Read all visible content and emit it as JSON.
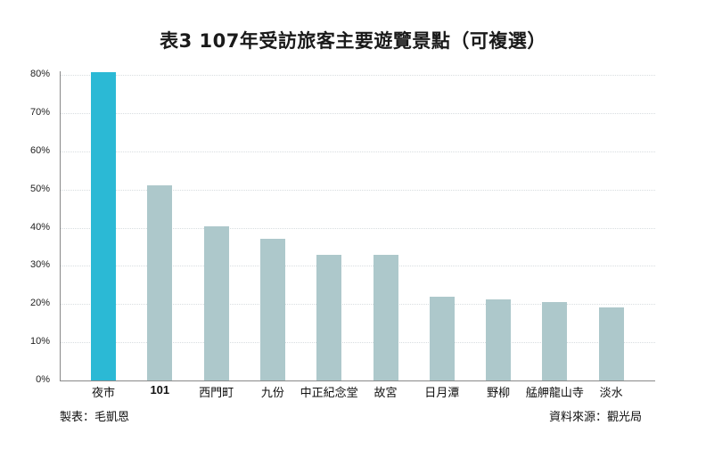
{
  "chart_data": {
    "type": "bar",
    "title": "表3 107年受訪旅客主要遊覽景點（可複選）",
    "xlabel": "",
    "ylabel": "",
    "categories": [
      "夜市",
      "101",
      "西門町",
      "九份",
      "中正紀念堂",
      "故宮",
      "日月潭",
      "野柳",
      "艋舺龍山寺",
      "淡水"
    ],
    "values": [
      80.8,
      51.0,
      40.4,
      37.1,
      33.0,
      32.9,
      22.0,
      21.2,
      20.5,
      19.1
    ],
    "unit": "%",
    "ylim": [
      0,
      80
    ],
    "yticks": [
      "0%",
      "10%",
      "20%",
      "30%",
      "40%",
      "50%",
      "60%",
      "70%",
      "80%"
    ],
    "grid": true,
    "legend": null,
    "colors": {
      "highlight": "#2bb9d5",
      "default": "#adc8cb"
    },
    "highlight_index": 0
  },
  "footer": {
    "author": "製表：毛凱恩",
    "source": "資料來源：觀光局"
  }
}
